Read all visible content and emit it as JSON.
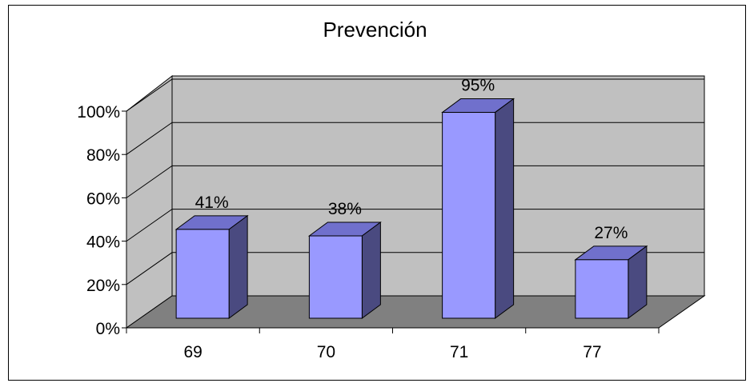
{
  "chart_data": {
    "type": "bar",
    "title": "Prevención",
    "categories": [
      "69",
      "70",
      "71",
      "77"
    ],
    "values": [
      41,
      38,
      95,
      27
    ],
    "data_labels": [
      "41%",
      "38%",
      "95%",
      "27%"
    ],
    "ylim": [
      0,
      100
    ],
    "yticks": [
      "0%",
      "20%",
      "40%",
      "60%",
      "80%",
      "100%"
    ],
    "grid": true,
    "legend": "none",
    "style": "3d-column",
    "colors": {
      "bar_front": "#9999ff",
      "bar_top": "#7070cc",
      "bar_side": "#4a4a80",
      "back_wall": "#c0c0c0",
      "side_wall": "#c0c0c0",
      "floor": "#808080"
    }
  }
}
